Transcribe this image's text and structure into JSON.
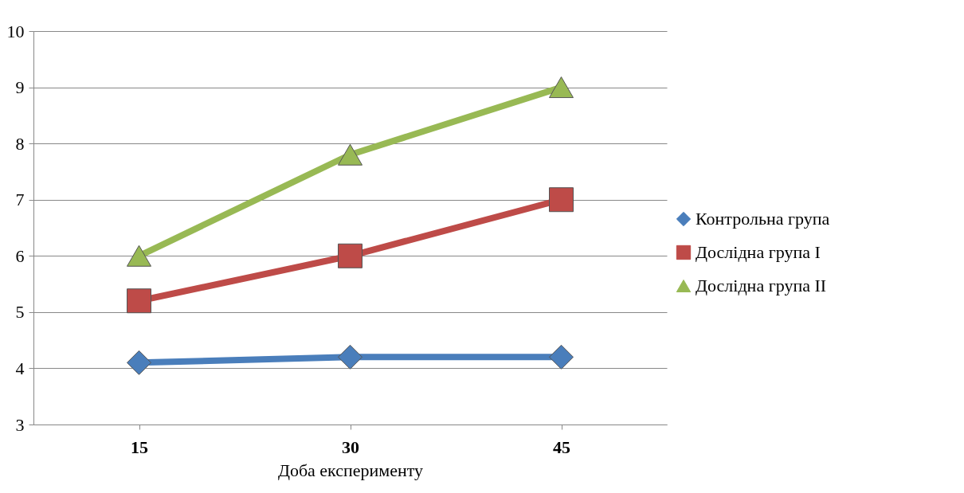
{
  "chart_data": {
    "type": "line",
    "xlabel": "Доба експерименту",
    "categories": [
      "15",
      "30",
      "45"
    ],
    "series": [
      {
        "name": "Контрольна група",
        "color": "#4a7ebb",
        "marker": "diamond",
        "values": [
          4.1,
          4.2,
          4.2
        ]
      },
      {
        "name": "Дослідна група I",
        "color": "#be4b48",
        "marker": "square",
        "values": [
          5.2,
          6.0,
          7.0
        ]
      },
      {
        "name": "Дослідна група II",
        "color": "#98b954",
        "marker": "triangle",
        "values": [
          6.0,
          7.8,
          9.0
        ]
      }
    ],
    "ylim": [
      3,
      10
    ],
    "yticks": [
      3,
      4,
      5,
      6,
      7,
      8,
      9,
      10
    ],
    "grid": "y",
    "legend": "right",
    "line_style": "solid"
  }
}
